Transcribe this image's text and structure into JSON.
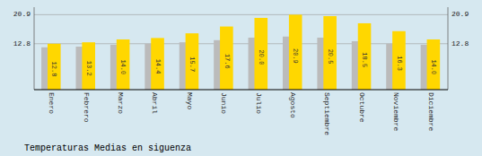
{
  "chart_data": {
    "type": "bar",
    "title": "Temperaturas Medias en siguenza",
    "categories": [
      "Enero",
      "Febrero",
      "Marzo",
      "Abril",
      "Mayo",
      "Junio",
      "Julio",
      "Agosto",
      "Septiembre",
      "Octubre",
      "Noviembre",
      "Diciembre"
    ],
    "series": [
      {
        "color": "#BBBBBB",
        "values": [
          11.8,
          12.0,
          12.5,
          12.8,
          13.2,
          13.8,
          14.5,
          14.8,
          14.5,
          13.5,
          12.8,
          12.5
        ]
      },
      {
        "color": "#FFD700",
        "values": [
          12.8,
          13.2,
          14.0,
          14.4,
          15.7,
          17.6,
          20.0,
          20.9,
          20.5,
          18.5,
          16.3,
          14.0
        ],
        "value_labels": [
          "12.8",
          "13.2",
          "14.0",
          "14.4",
          "15.7",
          "17.6",
          "20.0",
          "20.9",
          "20.5",
          "18.5",
          "16.3",
          "14.0"
        ],
        "data_labels": true
      }
    ],
    "ylim": [
      0,
      22.99
    ],
    "yticks": [
      12.8,
      20.9
    ],
    "y2lim": [
      0,
      22.99
    ],
    "y2ticks": [
      12.8,
      20.9
    ],
    "grid": true
  }
}
